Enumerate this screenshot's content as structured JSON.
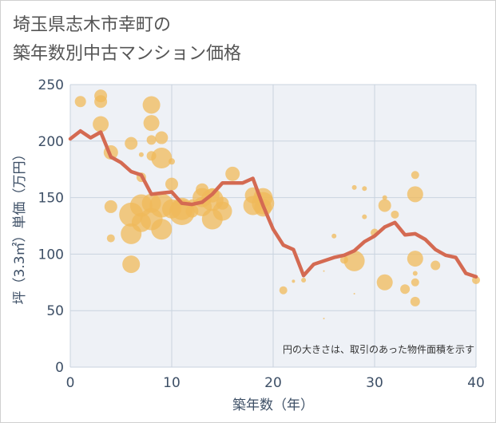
{
  "title": {
    "line1": "埼玉県志木市幸町の",
    "line2": "築年数別中古マンション価格"
  },
  "chart_data": {
    "type": "scatter",
    "xlabel": "築年数（年）",
    "ylabel": "坪（3.3㎡）単価（万円）",
    "xlim": [
      0,
      40
    ],
    "ylim": [
      0,
      250
    ],
    "xticks": [
      0,
      10,
      20,
      30,
      40
    ],
    "yticks": [
      0,
      50,
      100,
      150,
      200,
      250
    ],
    "grid": true,
    "annotation": "円の大きさは、取引のあった物件面積を示す",
    "colors": {
      "bubble": "#f0b95a",
      "line": "#d46a52",
      "grid": "#c9d3df",
      "plot_bg": "#eef1f6"
    },
    "bubbles": [
      {
        "x": 1,
        "y": 235,
        "s": 7
      },
      {
        "x": 3,
        "y": 240,
        "s": 8
      },
      {
        "x": 3,
        "y": 235,
        "s": 8
      },
      {
        "x": 3,
        "y": 215,
        "s": 10
      },
      {
        "x": 4,
        "y": 190,
        "s": 9
      },
      {
        "x": 4,
        "y": 142,
        "s": 8
      },
      {
        "x": 4,
        "y": 114,
        "s": 5
      },
      {
        "x": 6,
        "y": 198,
        "s": 8
      },
      {
        "x": 6,
        "y": 135,
        "s": 15
      },
      {
        "x": 6,
        "y": 118,
        "s": 13
      },
      {
        "x": 6,
        "y": 91,
        "s": 11
      },
      {
        "x": 7,
        "y": 188,
        "s": 3
      },
      {
        "x": 7,
        "y": 168,
        "s": 6
      },
      {
        "x": 7,
        "y": 143,
        "s": 14
      },
      {
        "x": 7,
        "y": 128,
        "s": 12
      },
      {
        "x": 8,
        "y": 232,
        "s": 11
      },
      {
        "x": 8,
        "y": 216,
        "s": 10
      },
      {
        "x": 8,
        "y": 201,
        "s": 6
      },
      {
        "x": 8,
        "y": 187,
        "s": 6
      },
      {
        "x": 8,
        "y": 145,
        "s": 12
      },
      {
        "x": 8,
        "y": 131,
        "s": 14
      },
      {
        "x": 9,
        "y": 203,
        "s": 8
      },
      {
        "x": 9,
        "y": 185,
        "s": 13
      },
      {
        "x": 9,
        "y": 143,
        "s": 15
      },
      {
        "x": 9,
        "y": 122,
        "s": 13
      },
      {
        "x": 10,
        "y": 182,
        "s": 4
      },
      {
        "x": 10,
        "y": 162,
        "s": 8
      },
      {
        "x": 10,
        "y": 140,
        "s": 12
      },
      {
        "x": 11,
        "y": 137,
        "s": 16
      },
      {
        "x": 11,
        "y": 140,
        "s": 14
      },
      {
        "x": 12,
        "y": 145,
        "s": 5
      },
      {
        "x": 12,
        "y": 138,
        "s": 8
      },
      {
        "x": 13,
        "y": 157,
        "s": 8
      },
      {
        "x": 13,
        "y": 150,
        "s": 12
      },
      {
        "x": 13,
        "y": 142,
        "s": 12
      },
      {
        "x": 14,
        "y": 148,
        "s": 14
      },
      {
        "x": 14,
        "y": 131,
        "s": 13
      },
      {
        "x": 14,
        "y": 152,
        "s": 9
      },
      {
        "x": 15,
        "y": 145,
        "s": 8
      },
      {
        "x": 15,
        "y": 138,
        "s": 12
      },
      {
        "x": 16,
        "y": 171,
        "s": 9
      },
      {
        "x": 18,
        "y": 152,
        "s": 10
      },
      {
        "x": 18,
        "y": 143,
        "s": 12
      },
      {
        "x": 19,
        "y": 150,
        "s": 12
      },
      {
        "x": 19,
        "y": 145,
        "s": 14
      },
      {
        "x": 19,
        "y": 141,
        "s": 11
      },
      {
        "x": 21,
        "y": 68,
        "s": 5
      },
      {
        "x": 22,
        "y": 76,
        "s": 2
      },
      {
        "x": 23,
        "y": 77,
        "s": 3
      },
      {
        "x": 25,
        "y": 85,
        "s": 1
      },
      {
        "x": 25,
        "y": 43,
        "s": 1
      },
      {
        "x": 26,
        "y": 116,
        "s": 3
      },
      {
        "x": 27,
        "y": 95,
        "s": 5
      },
      {
        "x": 28,
        "y": 94,
        "s": 13
      },
      {
        "x": 28,
        "y": 159,
        "s": 3
      },
      {
        "x": 28,
        "y": 65,
        "s": 1
      },
      {
        "x": 29,
        "y": 158,
        "s": 3
      },
      {
        "x": 29,
        "y": 133,
        "s": 3
      },
      {
        "x": 30,
        "y": 119,
        "s": 5
      },
      {
        "x": 31,
        "y": 150,
        "s": 3
      },
      {
        "x": 31,
        "y": 143,
        "s": 8
      },
      {
        "x": 31,
        "y": 75,
        "s": 10
      },
      {
        "x": 32,
        "y": 135,
        "s": 5
      },
      {
        "x": 33,
        "y": 69,
        "s": 6
      },
      {
        "x": 34,
        "y": 170,
        "s": 5
      },
      {
        "x": 34,
        "y": 153,
        "s": 10
      },
      {
        "x": 34,
        "y": 96,
        "s": 10
      },
      {
        "x": 34,
        "y": 83,
        "s": 3
      },
      {
        "x": 34,
        "y": 75,
        "s": 5
      },
      {
        "x": 34,
        "y": 58,
        "s": 6
      },
      {
        "x": 36,
        "y": 90,
        "s": 6
      },
      {
        "x": 40,
        "y": 77,
        "s": 5
      }
    ],
    "series": [
      {
        "x": [
          0,
          1,
          2,
          3,
          4,
          5,
          6,
          7,
          8,
          9,
          10,
          11,
          12,
          13,
          14,
          15,
          16,
          17,
          18,
          19,
          20,
          21,
          22,
          23,
          24,
          25,
          26,
          27,
          28,
          29,
          30,
          31,
          32,
          33,
          34,
          35,
          36,
          37,
          38,
          39,
          40
        ],
        "y": [
          202,
          209,
          203,
          208,
          186,
          181,
          173,
          170,
          153,
          154,
          155,
          145,
          144,
          146,
          153,
          163,
          163,
          163,
          167,
          143,
          122,
          108,
          104,
          81,
          91,
          94,
          97,
          99,
          103,
          111,
          116,
          124,
          128,
          117,
          118,
          113,
          104,
          99,
          97,
          83,
          80
        ]
      }
    ]
  }
}
